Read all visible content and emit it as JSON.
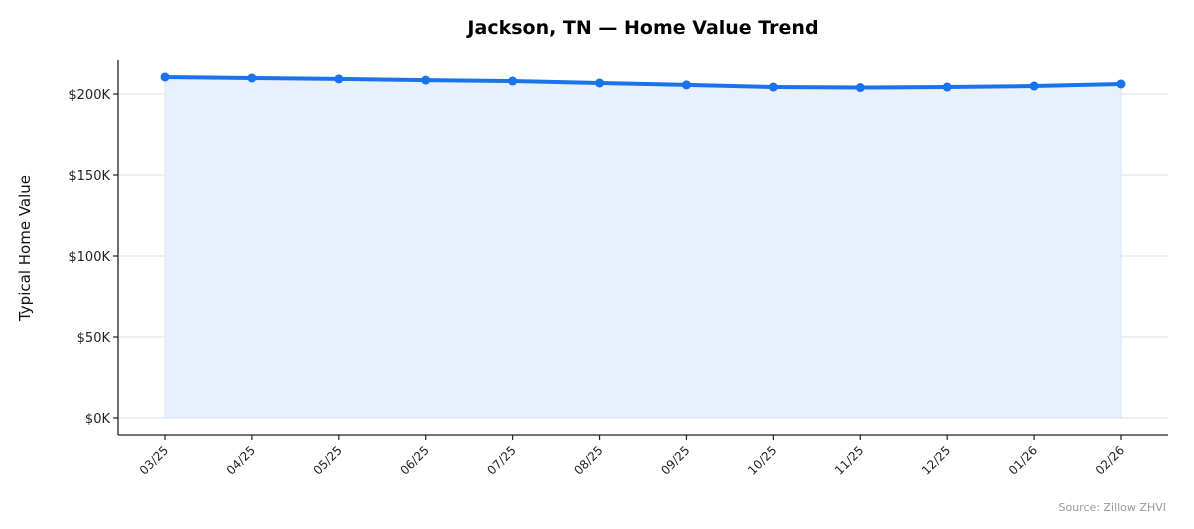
{
  "chart_data": {
    "type": "area",
    "title": "Jackson, TN — Home Value Trend",
    "xlabel": "",
    "ylabel": "Typical Home Value",
    "categories": [
      "03/25",
      "04/25",
      "05/25",
      "06/25",
      "07/25",
      "08/25",
      "09/25",
      "10/25",
      "11/25",
      "12/25",
      "01/26",
      "02/26"
    ],
    "series": [
      {
        "name": "Typical Home Value",
        "values": [
          210500,
          209900,
          209300,
          208600,
          208000,
          206800,
          205600,
          204300,
          204000,
          204300,
          204900,
          206200
        ],
        "color": "#1a73e8",
        "fill_color": "#e8f0fe"
      }
    ],
    "ylim": [
      -10000,
      222000
    ],
    "yticks": [
      0,
      50000,
      100000,
      150000,
      200000
    ],
    "ytick_labels": [
      "$0K",
      "$50K",
      "$100K",
      "$150K",
      "$200K"
    ],
    "grid": "horizontal",
    "legend": null,
    "annotations": [
      "Source: Zillow ZHVI"
    ]
  },
  "source_note": "Source: Zillow ZHVI"
}
